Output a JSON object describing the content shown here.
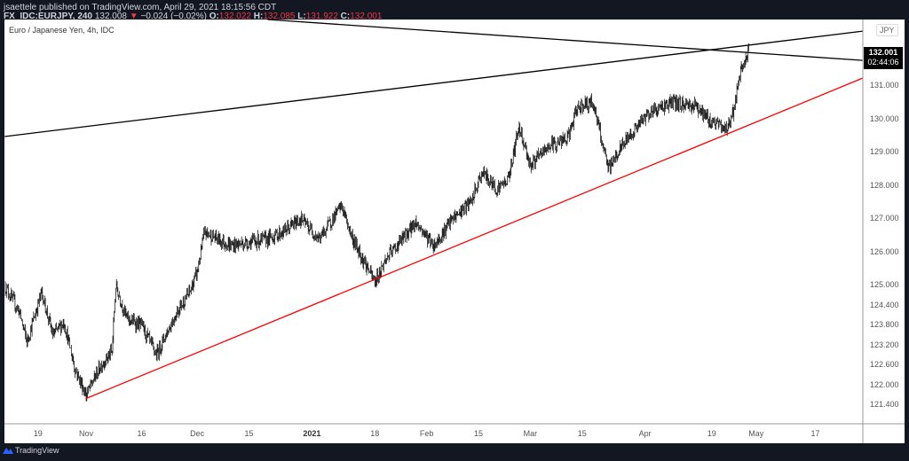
{
  "header": {
    "published": "jsaettele published on TradingView.com, April 29, 2021 18:15:56 CDT",
    "symbol": "FX_IDC:EURJPY, 240",
    "last": "132.008",
    "change": "−0.024 (−0.02%)",
    "o_label": "O:",
    "o": "132.022",
    "h_label": "H:",
    "h": "132.085",
    "l_label": "L:",
    "l": "131.922",
    "c_label": "C:",
    "c": "132.001",
    "direction_icon": "triangle-down-icon"
  },
  "chart": {
    "subtitle": "Euro / Japanese Yen, 4h, IDC",
    "currency": "JPY",
    "current_price": "132.001",
    "countdown": "02:44:06",
    "colors": {
      "candles": "#000000",
      "support_line": "#ff0000",
      "resistance_lines": "#000000",
      "accent_down": "#f23645"
    }
  },
  "branding": {
    "logo_text": "TradingView"
  },
  "chart_data": {
    "type": "ohlc",
    "price_ticks": [
      "131.000",
      "130.000",
      "129.000",
      "128.000",
      "127.000",
      "126.000",
      "125.000",
      "124.400",
      "123.800",
      "123.200",
      "122.600",
      "122.000",
      "121.400"
    ],
    "time_ticks": [
      {
        "label": "19",
        "date": "2020-10-19"
      },
      {
        "label": "Nov",
        "date": "2020-11-01"
      },
      {
        "label": "16",
        "date": "2020-11-16"
      },
      {
        "label": "Dec",
        "date": "2020-12-01"
      },
      {
        "label": "15",
        "date": "2020-12-15"
      },
      {
        "label": "2021",
        "date": "2021-01-01",
        "bold": true
      },
      {
        "label": "18",
        "date": "2021-01-18"
      },
      {
        "label": "Feb",
        "date": "2021-02-01"
      },
      {
        "label": "15",
        "date": "2021-02-15"
      },
      {
        "label": "Mar",
        "date": "2021-03-01"
      },
      {
        "label": "15",
        "date": "2021-03-15"
      },
      {
        "label": "Apr",
        "date": "2021-04-01"
      },
      {
        "label": "19",
        "date": "2021-04-19"
      },
      {
        "label": "May",
        "date": "2021-05-01"
      },
      {
        "label": "17",
        "date": "2021-05-17"
      }
    ],
    "price_path": [
      [
        "2020-10-10",
        125.0
      ],
      [
        "2020-10-14",
        124.2
      ],
      [
        "2020-10-16",
        123.3
      ],
      [
        "2020-10-20",
        124.8
      ],
      [
        "2020-10-23",
        123.5
      ],
      [
        "2020-10-26",
        123.9
      ],
      [
        "2020-10-29",
        122.5
      ],
      [
        "2020-11-01",
        121.7
      ],
      [
        "2020-11-05",
        122.6
      ],
      [
        "2020-11-08",
        123.0
      ],
      [
        "2020-11-09",
        125.0
      ],
      [
        "2020-11-12",
        124.0
      ],
      [
        "2020-11-16",
        123.8
      ],
      [
        "2020-11-20",
        122.9
      ],
      [
        "2020-11-22",
        123.4
      ],
      [
        "2020-11-26",
        124.3
      ],
      [
        "2020-11-29",
        124.8
      ],
      [
        "2020-12-01",
        125.4
      ],
      [
        "2020-12-03",
        126.6
      ],
      [
        "2020-12-10",
        126.2
      ],
      [
        "2020-12-20",
        126.4
      ],
      [
        "2020-12-24",
        126.6
      ],
      [
        "2020-12-29",
        127.0
      ],
      [
        "2021-01-03",
        126.4
      ],
      [
        "2021-01-09",
        127.4
      ],
      [
        "2021-01-12",
        126.4
      ],
      [
        "2021-01-18",
        125.1
      ],
      [
        "2021-01-21",
        125.8
      ],
      [
        "2021-01-24",
        126.2
      ],
      [
        "2021-01-29",
        126.9
      ],
      [
        "2021-02-03",
        126.2
      ],
      [
        "2021-02-08",
        127.0
      ],
      [
        "2021-02-13",
        127.5
      ],
      [
        "2021-02-16",
        128.4
      ],
      [
        "2021-02-20",
        127.9
      ],
      [
        "2021-02-23",
        128.2
      ],
      [
        "2021-02-26",
        129.8
      ],
      [
        "2021-03-01",
        128.6
      ],
      [
        "2021-03-06",
        129.2
      ],
      [
        "2021-03-11",
        129.4
      ],
      [
        "2021-03-14",
        130.4
      ],
      [
        "2021-03-18",
        130.5
      ],
      [
        "2021-03-22",
        128.5
      ],
      [
        "2021-03-27",
        129.4
      ],
      [
        "2021-04-02",
        130.2
      ],
      [
        "2021-04-08",
        130.5
      ],
      [
        "2021-04-15",
        130.4
      ],
      [
        "2021-04-18",
        130.0
      ],
      [
        "2021-04-23",
        129.7
      ],
      [
        "2021-04-25",
        130.3
      ],
      [
        "2021-04-27",
        131.5
      ],
      [
        "2021-04-29",
        132.0
      ]
    ],
    "trend_lines": [
      {
        "color": "#ff0000",
        "from": [
          "2020-11-01",
          121.6
        ],
        "to": [
          "2021-05-30",
          131.24
        ]
      },
      {
        "color": "#000000",
        "from": [
          "2020-10-10",
          129.48
        ],
        "to": [
          "2021-05-30",
          132.65
        ]
      },
      {
        "color": "#000000",
        "from": [
          "2020-12-20",
          133.0
        ],
        "to": [
          "2021-05-30",
          131.77
        ]
      }
    ]
  }
}
